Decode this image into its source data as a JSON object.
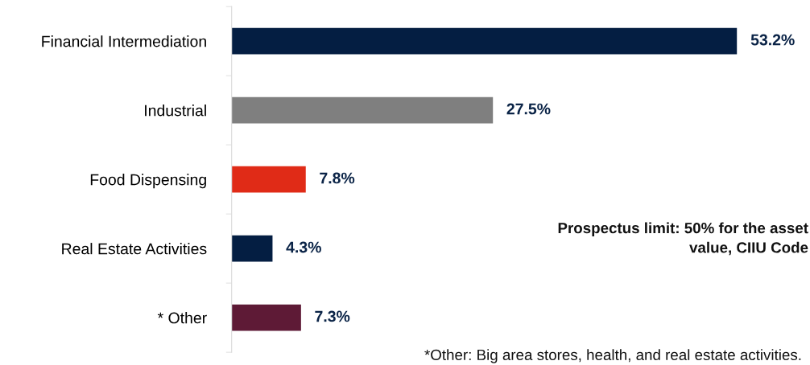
{
  "chart_data": {
    "type": "bar",
    "orientation": "horizontal",
    "categories": [
      "Financial Intermediation",
      "Industrial",
      "Food Dispensing",
      "Real Estate Activities",
      "* Other"
    ],
    "values": [
      53.2,
      27.5,
      7.8,
      4.3,
      7.3
    ],
    "colors": [
      "#041e42",
      "#7f7f7f",
      "#e02b17",
      "#041e42",
      "#5e1a36"
    ],
    "value_labels": [
      "53.2%",
      "27.5%",
      "7.8%",
      "4.3%",
      "7.3%"
    ],
    "tick_labels": "y",
    "grid": false,
    "legend": false,
    "annotations": [
      "Prospectus limit: 50% for the asset\nvalue, CIIU Code",
      "*Other: Big area stores, health, and real estate activities."
    ]
  }
}
